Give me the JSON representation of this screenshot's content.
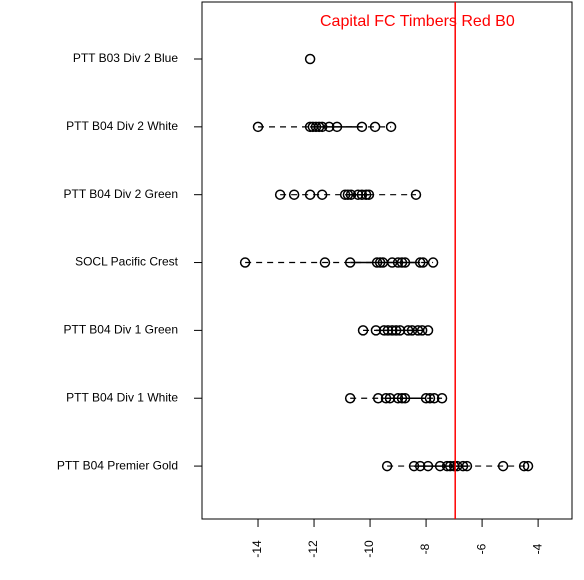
{
  "chart_data": {
    "type": "strip",
    "categories": [
      "PTT B04 Premier Gold",
      "PTT B04 Div 1 White",
      "PTT B04 Div 1 Green",
      "SOCL Pacific Crest",
      "PTT B04 Div 2 Green",
      "PTT B04 Div 2 White",
      "PTT B03 Div 2 Blue"
    ],
    "values": [
      [
        -9.39,
        -8.43,
        -8.21,
        -7.93,
        -7.5,
        -7.25,
        -7.14,
        -7.0,
        -6.89,
        -6.68,
        -6.54,
        -5.25,
        -4.5,
        -4.36
      ],
      [
        -10.71,
        -9.71,
        -9.43,
        -9.29,
        -9.0,
        -8.86,
        -8.75,
        -8.0,
        -7.86,
        -7.71,
        -7.43
      ],
      [
        -10.25,
        -9.79,
        -9.5,
        -9.36,
        -9.21,
        -9.07,
        -8.93,
        -8.64,
        -8.5,
        -8.29,
        -8.14,
        -7.93
      ],
      [
        -14.46,
        -11.61,
        -10.71,
        -9.75,
        -9.64,
        -9.54,
        -9.21,
        -9.0,
        -8.86,
        -8.75,
        -8.21,
        -8.11,
        -7.75
      ],
      [
        -13.21,
        -12.71,
        -12.14,
        -11.71,
        -10.89,
        -10.79,
        -10.68,
        -10.43,
        -10.29,
        -10.14,
        -10.04,
        -8.36
      ],
      [
        -14.0,
        -12.14,
        -12.04,
        -11.93,
        -11.82,
        -11.71,
        -11.46,
        -11.18,
        -10.29,
        -9.82,
        -9.25
      ],
      [
        -12.14
      ]
    ],
    "box": [
      [
        -8.43,
        -6.54
      ],
      [
        -9.43,
        -8.0
      ],
      [
        -9.79,
        -8.29
      ],
      [
        -10.71,
        -8.21
      ],
      [
        -10.89,
        -10.04
      ],
      [
        -12.14,
        -10.29
      ],
      [
        -12.14,
        -12.14
      ]
    ],
    "color": "#000000",
    "vline": -6.96,
    "vline_color": "#ff0000",
    "vline_label": "Capital FC Timbers Red B0",
    "xlim": [
      -16,
      -2.79
    ],
    "xticks": [
      -14,
      -12,
      -10,
      -8,
      -6,
      -4
    ],
    "ylim": [
      0.22,
      7.84
    ]
  }
}
